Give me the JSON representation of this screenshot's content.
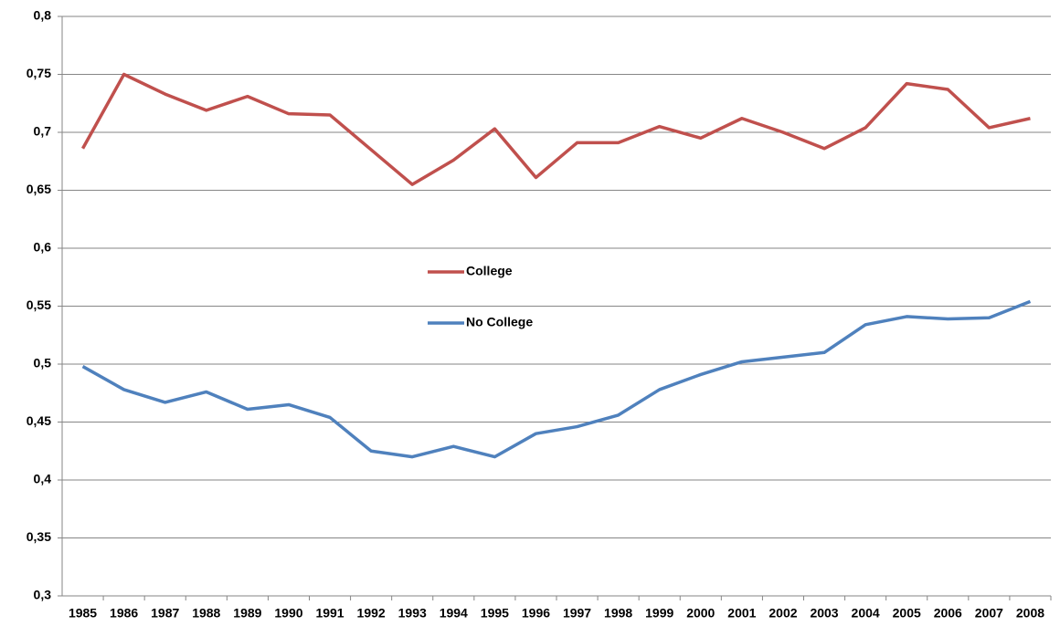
{
  "chart_data": {
    "type": "line",
    "categories": [
      "1985",
      "1986",
      "1987",
      "1988",
      "1989",
      "1990",
      "1991",
      "1992",
      "1993",
      "1994",
      "1995",
      "1996",
      "1997",
      "1998",
      "1999",
      "2000",
      "2001",
      "2002",
      "2003",
      "2004",
      "2005",
      "2006",
      "2007",
      "2008"
    ],
    "series": [
      {
        "name": "College",
        "color": "#c0504d",
        "values": [
          0.686,
          0.75,
          0.733,
          0.719,
          0.731,
          0.716,
          0.715,
          0.685,
          0.655,
          0.676,
          0.703,
          0.661,
          0.691,
          0.691,
          0.705,
          0.695,
          0.712,
          0.7,
          0.686,
          0.704,
          0.742,
          0.737,
          0.704,
          0.712
        ]
      },
      {
        "name": "No College",
        "color": "#4f81bd",
        "values": [
          0.498,
          0.478,
          0.467,
          0.476,
          0.461,
          0.465,
          0.454,
          0.425,
          0.42,
          0.429,
          0.42,
          0.44,
          0.446,
          0.456,
          0.478,
          0.491,
          0.502,
          0.506,
          0.51,
          0.534,
          0.541,
          0.539,
          0.54,
          0.554
        ]
      }
    ],
    "ylim": [
      0.3,
      0.8
    ],
    "yticks": [
      {
        "value": 0.3,
        "label": "0,3"
      },
      {
        "value": 0.35,
        "label": "0,35"
      },
      {
        "value": 0.4,
        "label": "0,4"
      },
      {
        "value": 0.45,
        "label": "0,45"
      },
      {
        "value": 0.5,
        "label": "0,5"
      },
      {
        "value": 0.55,
        "label": "0,55"
      },
      {
        "value": 0.6,
        "label": "0,6"
      },
      {
        "value": 0.65,
        "label": "0,65"
      },
      {
        "value": 0.7,
        "label": "0,7"
      },
      {
        "value": 0.75,
        "label": "0,75"
      },
      {
        "value": 0.8,
        "label": "0,8"
      }
    ],
    "grid": true,
    "legend": "center"
  }
}
